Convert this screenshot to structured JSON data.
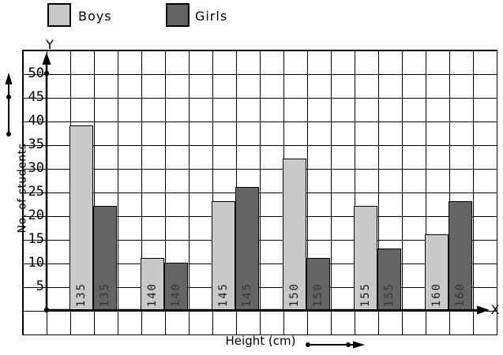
{
  "legend": {
    "items": [
      {
        "label": "Boys",
        "color": "#c9c9c9"
      },
      {
        "label": "Girls",
        "color": "#646464"
      }
    ]
  },
  "axis": {
    "y_end": "Y",
    "x_end": "X",
    "ylabel": "No. of students",
    "xlabel": "Height (cm)"
  },
  "chart_data": {
    "type": "bar",
    "title": "",
    "categories": [
      "135",
      "140",
      "145",
      "150",
      "155",
      "160"
    ],
    "series": [
      {
        "name": "Boys",
        "color": "#c9c9c9",
        "label_color": "#1c1c1c",
        "values": [
          39,
          11,
          23,
          32,
          22,
          16
        ]
      },
      {
        "name": "Girls",
        "color": "#646464",
        "label_color": "#333333",
        "values": [
          22,
          10,
          26,
          11,
          13,
          23
        ]
      }
    ],
    "xlabel": "Height (cm)",
    "ylabel": "No. of students",
    "y_ticks": [
      5,
      10,
      15,
      20,
      25,
      30,
      35,
      40,
      45,
      50
    ],
    "ylim": [
      0,
      55
    ],
    "grid": true,
    "gridline_step": 2.5,
    "legend_position": "top-left",
    "bar_value_labels": "category-shown-vertically-inside-each-bar"
  }
}
